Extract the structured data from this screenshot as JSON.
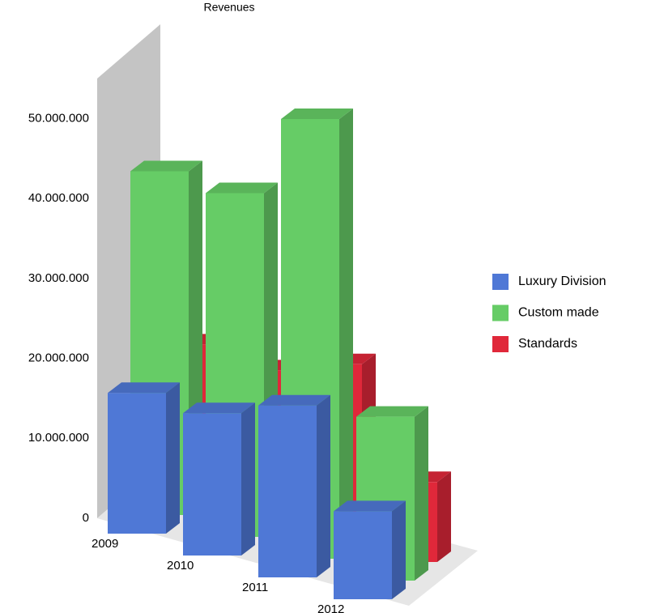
{
  "chart_data": {
    "type": "bar3d",
    "title": "Revenues",
    "categories": [
      "2009",
      "2010",
      "2011",
      "2012"
    ],
    "series": [
      {
        "name": "Luxury Division",
        "color": "#4f78d6",
        "values": [
          17600000,
          17800000,
          21500000,
          11000000
        ]
      },
      {
        "name": "Custom made",
        "color": "#66cc66",
        "values": [
          43000000,
          43000000,
          55000000,
          20500000
        ]
      },
      {
        "name": "Standards",
        "color": "#e0283a",
        "values": [
          19000000,
          18500000,
          22000000,
          10000000
        ]
      }
    ],
    "ylim": [
      0,
      55000000
    ],
    "yticks": [
      {
        "value": 0,
        "label": "0"
      },
      {
        "value": 10000000,
        "label": "10.000.000"
      },
      {
        "value": 20000000,
        "label": "20.000.000"
      },
      {
        "value": 30000000,
        "label": "30.000.000"
      },
      {
        "value": 40000000,
        "label": "40.000.000"
      },
      {
        "value": 50000000,
        "label": "50.000.000"
      }
    ],
    "legend": "right"
  }
}
